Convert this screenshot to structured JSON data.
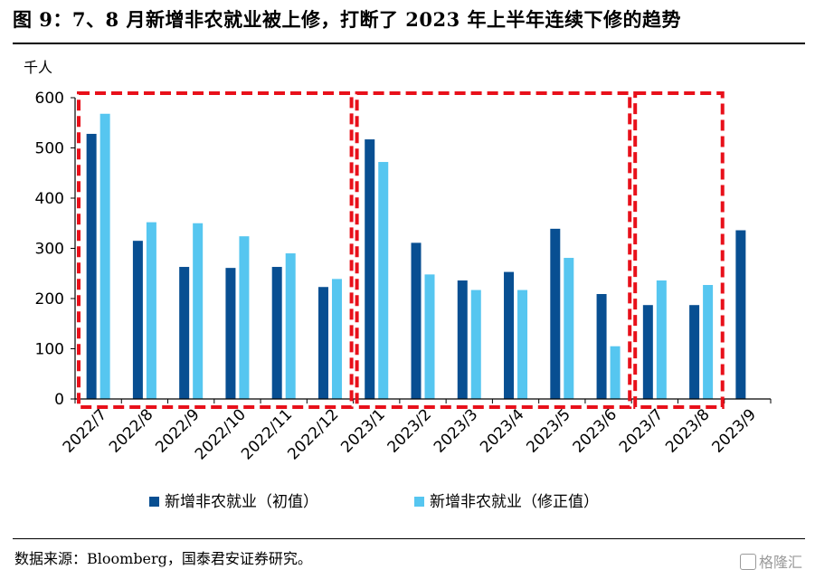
{
  "title": "图 9：7、8 月新增非农就业被上修，打断了 2023 年上半年连续下修的趋势",
  "source": "数据来源：Bloomberg，国泰君安证券研究。",
  "watermark": "格隆汇",
  "colors": {
    "initial": "#084f92",
    "revised": "#56c6f0",
    "highlight": "#e8101a"
  },
  "chart_data": {
    "type": "bar",
    "unit_label": "千人",
    "ylim": [
      0,
      600
    ],
    "yticks": [
      0,
      100,
      200,
      300,
      400,
      500,
      600
    ],
    "categories": [
      "2022/7",
      "2022/8",
      "2022/9",
      "2022/10",
      "2022/11",
      "2022/12",
      "2023/1",
      "2023/2",
      "2023/3",
      "2023/4",
      "2023/5",
      "2023/6",
      "2023/7",
      "2023/8",
      "2023/9"
    ],
    "series": [
      {
        "name": "新增非农就业（初值）",
        "values": [
          528,
          315,
          263,
          261,
          263,
          223,
          517,
          311,
          236,
          253,
          339,
          209,
          187,
          187,
          336
        ]
      },
      {
        "name": "新增非农就业（修正值）",
        "values": [
          568,
          352,
          350,
          324,
          290,
          239,
          472,
          248,
          217,
          217,
          281,
          105,
          236,
          227,
          null
        ]
      }
    ],
    "highlight_groups": [
      {
        "from": "2022/7",
        "to": "2022/12"
      },
      {
        "from": "2023/1",
        "to": "2023/6"
      },
      {
        "from": "2023/7",
        "to": "2023/8"
      }
    ],
    "legend_position": "bottom"
  }
}
